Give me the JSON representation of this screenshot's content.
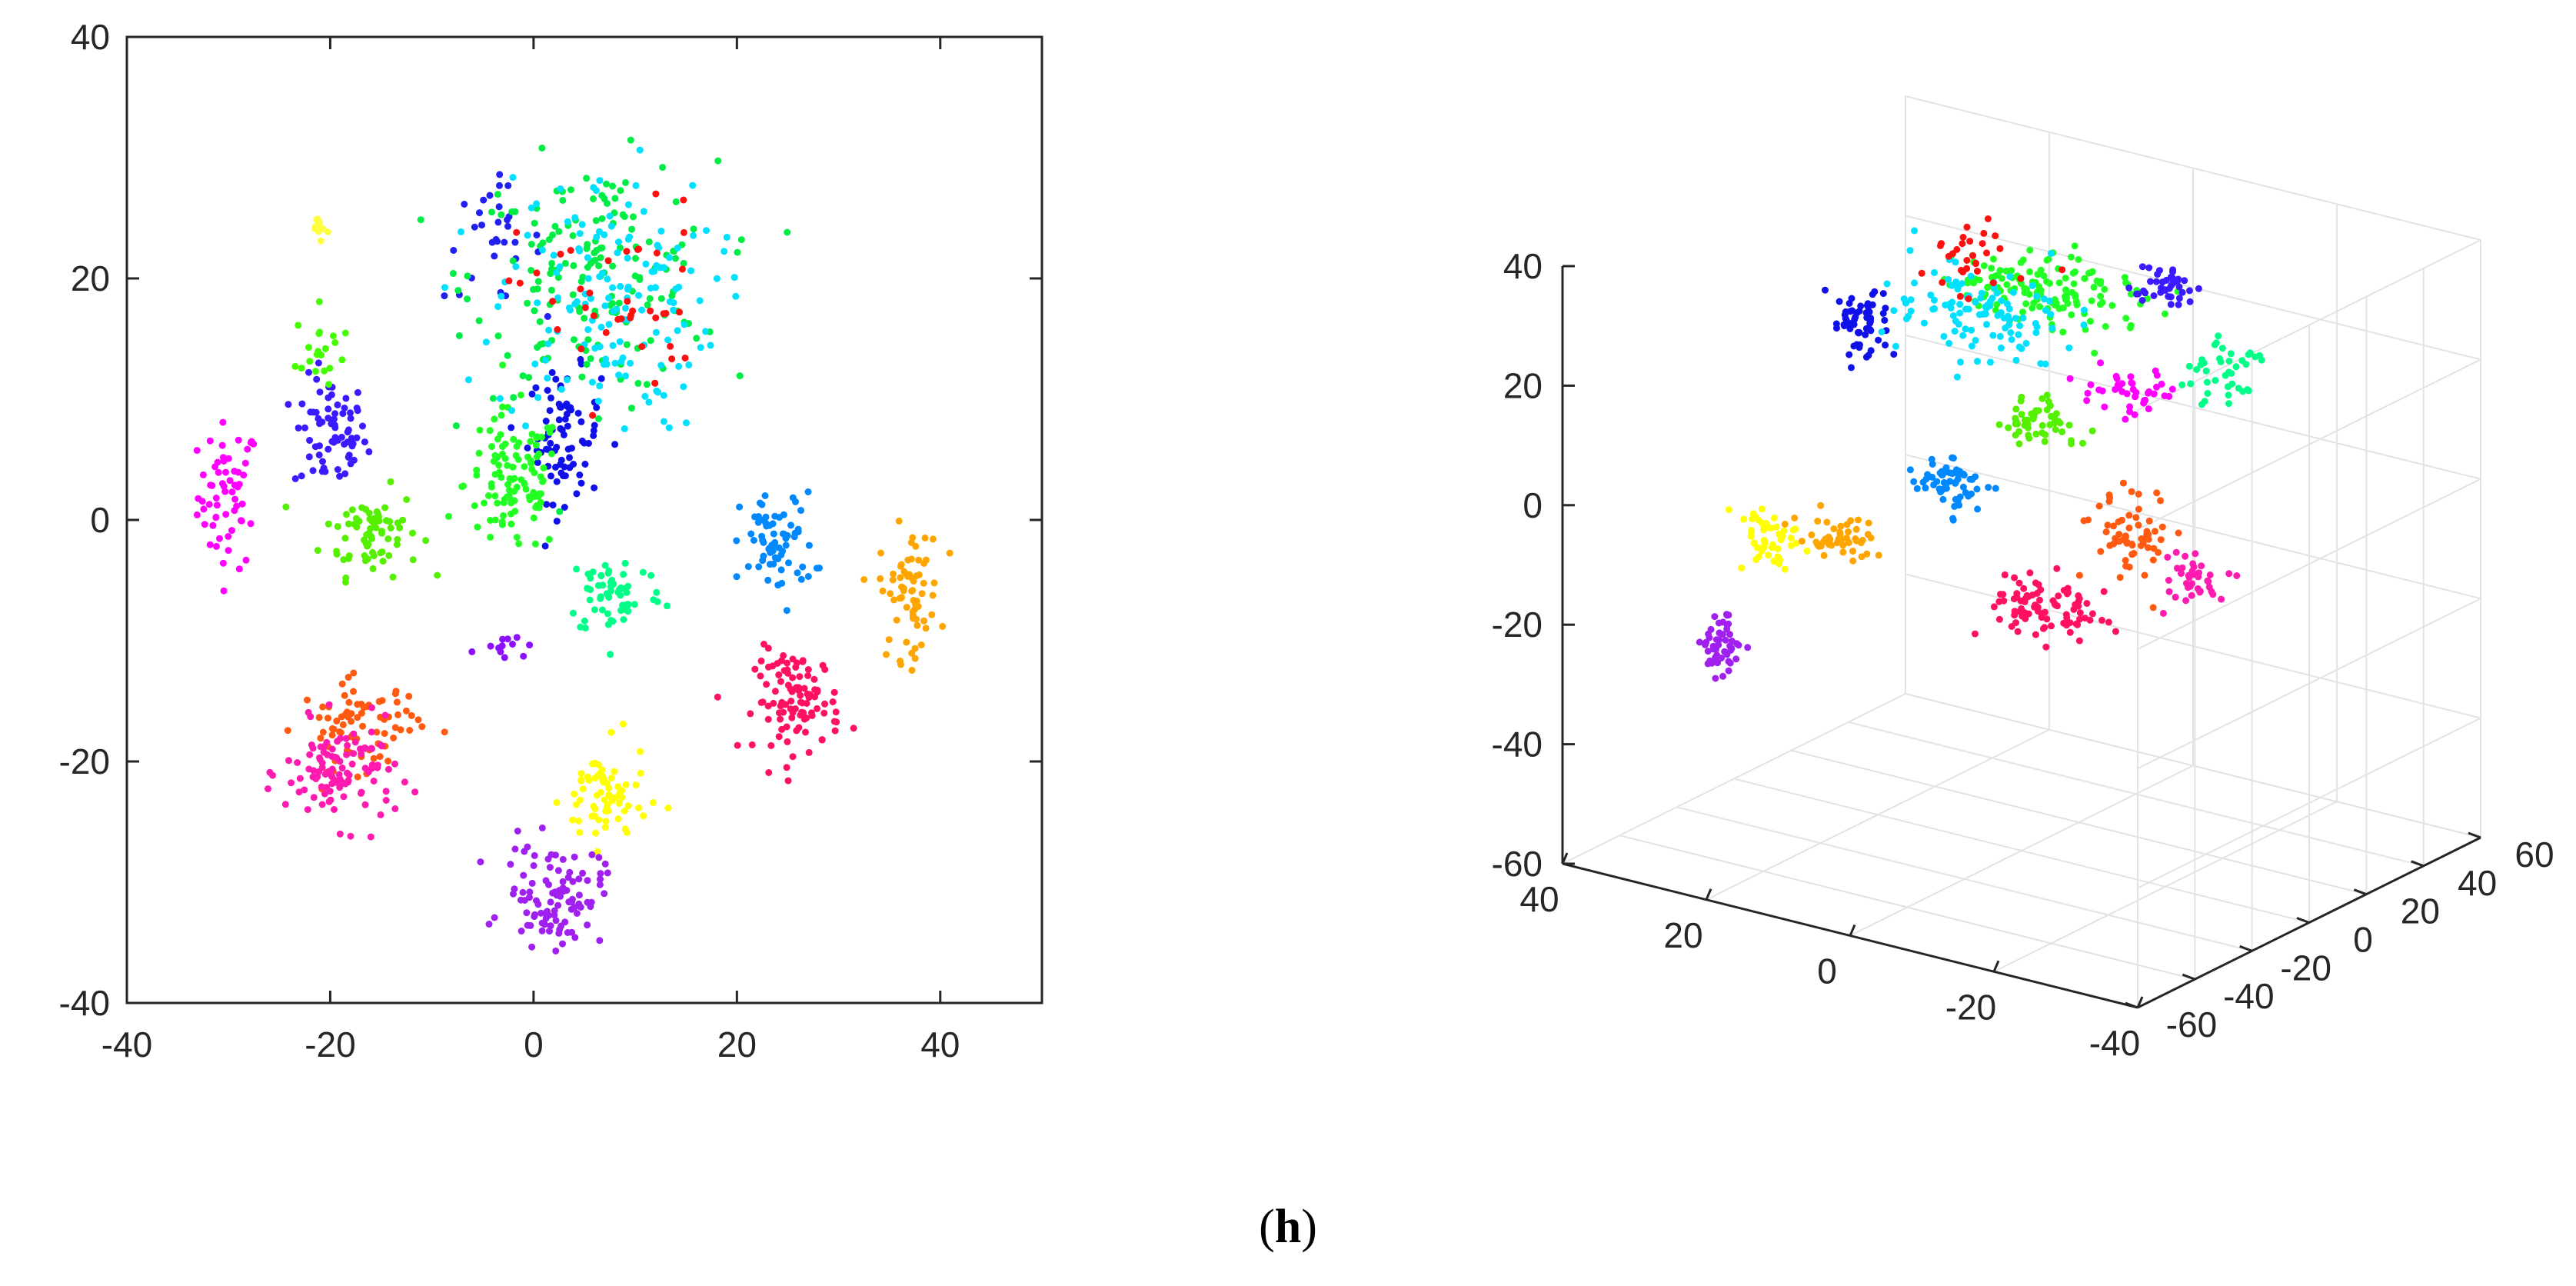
{
  "panel_label": {
    "open": "(",
    "letter": "h",
    "close": ")"
  },
  "chart_data": [
    {
      "type": "scatter",
      "title": "",
      "xlabel": "",
      "ylabel": "",
      "xlim": [
        -40,
        50
      ],
      "ylim": [
        -40,
        40
      ],
      "x_ticks": [
        "-40",
        "-20",
        "0",
        "20",
        "40"
      ],
      "x_tick_values": [
        -40,
        -20,
        0,
        20,
        40
      ],
      "y_ticks": [
        "-40",
        "-20",
        "0",
        "20",
        "40"
      ],
      "y_tick_values": [
        -40,
        -20,
        0,
        20,
        40
      ],
      "grid": false,
      "marker": "dot",
      "clusters": [
        {
          "name": "magenta",
          "color": "#ff00ff",
          "center": [
            -30,
            2
          ],
          "spread": [
            2.5,
            5
          ],
          "count": 60
        },
        {
          "name": "indigo",
          "color": "#3a1aff",
          "center": [
            -20,
            7
          ],
          "spread": [
            3,
            4
          ],
          "count": 70
        },
        {
          "name": "lime",
          "color": "#55f000",
          "center": [
            -16,
            -1
          ],
          "spread": [
            4,
            3
          ],
          "count": 70
        },
        {
          "name": "green-lime-upper",
          "color": "#44ff00",
          "center": [
            -21,
            14
          ],
          "spread": [
            2,
            3
          ],
          "count": 20
        },
        {
          "name": "blue-central",
          "color": "#1010e8",
          "center": [
            3,
            7
          ],
          "spread": [
            3,
            4.5
          ],
          "count": 80
        },
        {
          "name": "blue-upper",
          "color": "#2020f0",
          "center": [
            -4,
            23
          ],
          "spread": [
            4,
            4
          ],
          "count": 30
        },
        {
          "name": "green-central",
          "color": "#22ff22",
          "center": [
            -2,
            3
          ],
          "spread": [
            4,
            5
          ],
          "count": 110
        },
        {
          "name": "green-upper",
          "color": "#00ee44",
          "center": [
            6,
            20
          ],
          "spread": [
            10,
            8
          ],
          "count": 170
        },
        {
          "name": "spring-green",
          "color": "#00ff88",
          "center": [
            8,
            -6
          ],
          "spread": [
            4,
            3
          ],
          "count": 60
        },
        {
          "name": "cyan",
          "color": "#00e0ff",
          "center": [
            7,
            18
          ],
          "spread": [
            9,
            9
          ],
          "count": 150
        },
        {
          "name": "red",
          "color": "#ff1010",
          "center": [
            8,
            18
          ],
          "spread": [
            8,
            7
          ],
          "count": 40
        },
        {
          "name": "azure",
          "color": "#0088ff",
          "center": [
            24,
            -2
          ],
          "spread": [
            3,
            3.5
          ],
          "count": 70
        },
        {
          "name": "orange",
          "color": "#ffa500",
          "center": [
            37,
            -6
          ],
          "spread": [
            2.5,
            4.5
          ],
          "count": 70
        },
        {
          "name": "crimson",
          "color": "#ff1060",
          "center": [
            26,
            -15
          ],
          "spread": [
            3.5,
            3.5
          ],
          "count": 100
        },
        {
          "name": "orange-red",
          "color": "#ff5a10",
          "center": [
            -17,
            -17
          ],
          "spread": [
            5,
            3
          ],
          "count": 80
        },
        {
          "name": "pink",
          "color": "#ff1ab0",
          "center": [
            -19,
            -21
          ],
          "spread": [
            4.5,
            3.5
          ],
          "count": 110
        },
        {
          "name": "yellow",
          "color": "#ffff00",
          "center": [
            7,
            -23
          ],
          "spread": [
            3.5,
            3.5
          ],
          "count": 70
        },
        {
          "name": "violet",
          "color": "#a020f0",
          "center": [
            2,
            -31
          ],
          "spread": [
            4,
            3.5
          ],
          "count": 100
        },
        {
          "name": "yellow-upper",
          "color": "#ffff40",
          "center": [
            -21,
            24
          ],
          "spread": [
            1,
            1
          ],
          "count": 10
        },
        {
          "name": "violet-small",
          "color": "#8a10ff",
          "center": [
            -3,
            -10
          ],
          "spread": [
            2,
            1
          ],
          "count": 12
        }
      ]
    },
    {
      "type": "scatter3d",
      "title": "",
      "xlabel": "",
      "ylabel": "",
      "zlabel": "",
      "x_ticks": [
        "40",
        "20",
        "0",
        "-20",
        "-40"
      ],
      "x_tick_values": [
        40,
        20,
        0,
        -20,
        -40
      ],
      "y_ticks": [
        "-60",
        "-40",
        "-20",
        "0",
        "20",
        "40",
        "60"
      ],
      "y_tick_values": [
        -60,
        -40,
        -20,
        0,
        20,
        40,
        60
      ],
      "z_ticks": [
        "-60",
        "-40",
        "-20",
        "0",
        "20",
        "40"
      ],
      "z_tick_values": [
        -60,
        -40,
        -20,
        0,
        20,
        40
      ],
      "xlim": [
        -40,
        40
      ],
      "ylim": [
        -60,
        60
      ],
      "zlim": [
        -60,
        40
      ],
      "view": "azimuth -37.5, elevation 30",
      "grid": true,
      "marker": "dot",
      "clusters": [
        {
          "name": "blue-left",
          "color": "#1010e8",
          "center": [
            20,
            -5,
            22
          ],
          "spread": [
            3,
            3,
            5
          ],
          "count": 60
        },
        {
          "name": "green-top",
          "color": "#22ff22",
          "center": [
            5,
            20,
            28
          ],
          "spread": [
            10,
            12,
            4
          ],
          "count": 140
        },
        {
          "name": "cyan-top",
          "color": "#00e0ff",
          "center": [
            10,
            10,
            25
          ],
          "spread": [
            10,
            12,
            6
          ],
          "count": 110
        },
        {
          "name": "red-top",
          "color": "#ff1010",
          "center": [
            12,
            15,
            32
          ],
          "spread": [
            6,
            8,
            3
          ],
          "count": 30
        },
        {
          "name": "indigo-top",
          "color": "#3a1aff",
          "center": [
            -8,
            30,
            30
          ],
          "spread": [
            3,
            4,
            3
          ],
          "count": 40
        },
        {
          "name": "magenta-top",
          "color": "#ff00ff",
          "center": [
            -5,
            25,
            12
          ],
          "spread": [
            5,
            5,
            3
          ],
          "count": 40
        },
        {
          "name": "green-mid",
          "color": "#55f000",
          "center": [
            0,
            5,
            10
          ],
          "spread": [
            4,
            4,
            4
          ],
          "count": 50
        },
        {
          "name": "azure-mid",
          "color": "#0088ff",
          "center": [
            8,
            -5,
            0
          ],
          "spread": [
            4,
            3,
            4
          ],
          "count": 60
        },
        {
          "name": "yellow",
          "color": "#ffff00",
          "center": [
            25,
            -25,
            -10
          ],
          "spread": [
            3,
            3,
            4
          ],
          "count": 50
        },
        {
          "name": "orange",
          "color": "#ffa500",
          "center": [
            18,
            -20,
            -8
          ],
          "spread": [
            4,
            3,
            3
          ],
          "count": 50
        },
        {
          "name": "violet",
          "color": "#a020f0",
          "center": [
            28,
            -35,
            -25
          ],
          "spread": [
            2,
            2,
            5
          ],
          "count": 50
        },
        {
          "name": "crimson",
          "color": "#ff1060",
          "center": [
            0,
            10,
            -22
          ],
          "spread": [
            6,
            6,
            4
          ],
          "count": 90
        },
        {
          "name": "orange-red",
          "color": "#ff5a10",
          "center": [
            -5,
            25,
            -12
          ],
          "spread": [
            4,
            4,
            6
          ],
          "count": 60
        },
        {
          "name": "pink",
          "color": "#ff1ab0",
          "center": [
            -10,
            35,
            -20
          ],
          "spread": [
            4,
            4,
            4
          ],
          "count": 40
        },
        {
          "name": "spring-green",
          "color": "#00ff88",
          "center": [
            -12,
            40,
            15
          ],
          "spread": [
            4,
            6,
            4
          ],
          "count": 40
        }
      ]
    }
  ]
}
